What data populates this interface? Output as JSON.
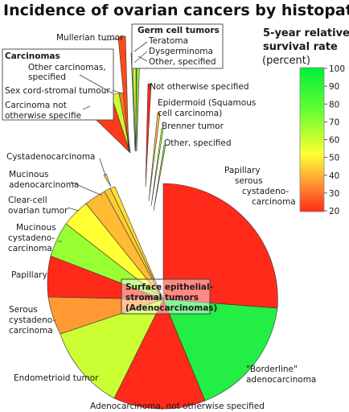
{
  "title": "Incidence of ovarian cancers by histopath",
  "legend": {
    "title_line1": "5-year relative",
    "title_line2": "survival rate",
    "unit": "(percent)",
    "ticks": [
      "100",
      "90",
      "80",
      "70",
      "60",
      "50",
      "40",
      "30",
      "20"
    ],
    "colors": {
      "top": "#00ee3a",
      "upper": "#66ff33",
      "mid": "#ffff33",
      "lower": "#ff9933",
      "bottom": "#ff2a1a"
    }
  },
  "groups": {
    "carcinomas": "Carcinomas",
    "germ_cell": "Germ cell tumors",
    "surface_line1": "Surface epithelial-",
    "surface_line2": "stromal tumors",
    "surface_line3": "(Adenocarcinomas)"
  },
  "labels": {
    "mullerian": "Mullerian tumor",
    "other_carcinomas_1": "Other carcinomas,",
    "other_carcinomas_2": "specified",
    "sex_cord": "Sex cord-stromal tumour",
    "carcinoma_nos_1": "Carcinoma not",
    "carcinoma_nos_2": "otherwise specifie",
    "teratoma": "Teratoma",
    "dysgerminoma": "Dysgerminoma",
    "germ_other": "Other, specified",
    "not_otherwise": "Not otherwise specified",
    "epidermoid_1": "Epidermoid (Squamous",
    "epidermoid_2": "cell carcinoma)",
    "brenner": "Brenner tumor",
    "other_specified": "Other, specified",
    "cystadenocarcinoma": "Cystadenocarcinoma",
    "mucinous_adeno_1": "Mucinous",
    "mucinous_adeno_2": "adenocarcinoma",
    "clear_cell_1": "Clear-cell",
    "clear_cell_2": "ovarian tumor",
    "mucinous_cyst_1": "Mucinous",
    "mucinous_cyst_2": "cystadeno-",
    "mucinous_cyst_3": "carcinoma",
    "papillary": "Papillary",
    "serous_1": "Serous",
    "serous_2": "cystadeno-",
    "serous_3": "carcinoma",
    "endometrioid": "Endometrioid tumor",
    "adeno_nos": "Adenocarcinoma, not otherwise specified",
    "borderline_1": "\"Borderline\"",
    "borderline_2": "adenocarcinoma",
    "papillary_serous_1": "Papillary",
    "papillary_serous_2": "serous",
    "papillary_serous_3": "cystadeno-",
    "papillary_serous_4": "carcinoma"
  }
}
